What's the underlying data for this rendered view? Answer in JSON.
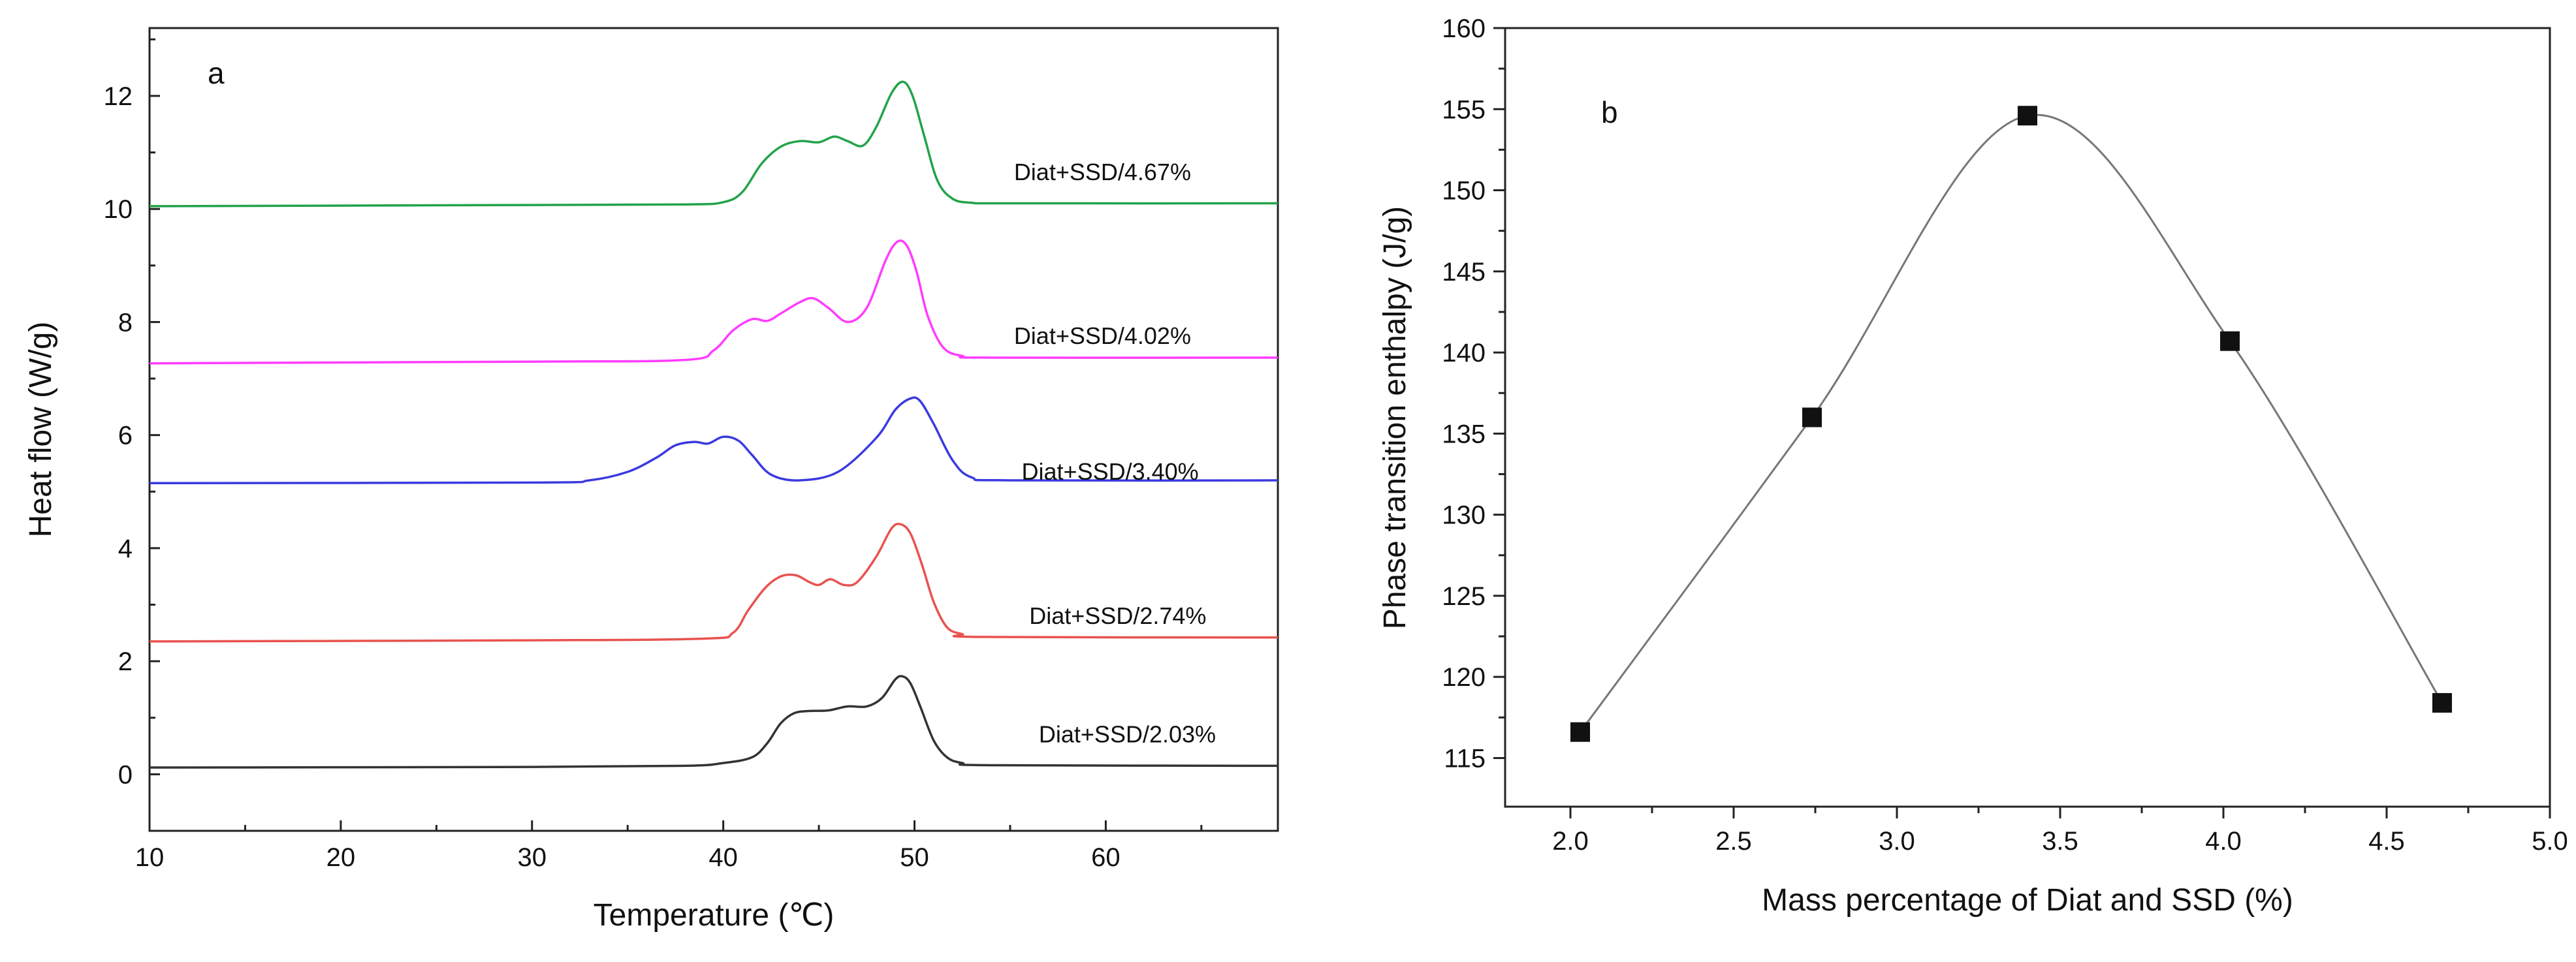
{
  "chart_data": [
    {
      "type": "line",
      "panel": "a",
      "title": "",
      "xlabel": "Temperature (℃)",
      "ylabel": "Heat flow (W/g)",
      "xlim": [
        10,
        69
      ],
      "ylim": [
        -1,
        13.2
      ],
      "xticks": [
        10,
        20,
        30,
        40,
        50,
        60
      ],
      "yticks": [
        0,
        2,
        4,
        6,
        8,
        10,
        12
      ],
      "grid": false,
      "series": [
        {
          "name": "Diat+SSD/2.03%",
          "color": "#333333",
          "baseline_start": 0.12,
          "baseline_end": 0.15,
          "label_at": [
            56.5,
            0.7
          ],
          "x": [
            10,
            30,
            38,
            40,
            41.5,
            42.3,
            43,
            43.7,
            44.5,
            45.5,
            46.5,
            47.5,
            48.3,
            49,
            49.4,
            49.8,
            50.3,
            51,
            51.7,
            52.5,
            54,
            69
          ],
          "y": [
            0.12,
            0.13,
            0.15,
            0.2,
            0.3,
            0.55,
            0.9,
            1.08,
            1.12,
            1.13,
            1.2,
            1.2,
            1.35,
            1.68,
            1.73,
            1.6,
            1.2,
            0.6,
            0.3,
            0.2,
            0.16,
            0.15
          ]
        },
        {
          "name": "Diat+SSD/2.74%",
          "color": "#e8534f",
          "baseline_start": 2.35,
          "baseline_end": 2.42,
          "label_at": [
            56,
            2.8
          ],
          "x": [
            10,
            30,
            39,
            40.5,
            41.3,
            42.2,
            43,
            43.8,
            44.5,
            45,
            45.6,
            46.3,
            47,
            48,
            48.8,
            49.3,
            49.8,
            50.4,
            51,
            51.7,
            52.5,
            53.5,
            69
          ],
          "y": [
            2.35,
            2.37,
            2.4,
            2.5,
            2.9,
            3.3,
            3.5,
            3.52,
            3.4,
            3.35,
            3.45,
            3.35,
            3.4,
            3.85,
            4.35,
            4.42,
            4.25,
            3.7,
            3.05,
            2.6,
            2.48,
            2.43,
            2.42
          ]
        },
        {
          "name": "Diat+SSD/3.40%",
          "color": "#3a3ae0",
          "baseline_start": 5.15,
          "baseline_end": 5.2,
          "label_at": [
            55.6,
            5.35
          ],
          "x": [
            10,
            30,
            33,
            35,
            36.5,
            37.5,
            38.5,
            39.2,
            40,
            40.8,
            41.5,
            42.5,
            44,
            46,
            48,
            49,
            49.8,
            50.3,
            51,
            52,
            53,
            55,
            69
          ],
          "y": [
            5.15,
            5.16,
            5.2,
            5.35,
            5.6,
            5.82,
            5.88,
            5.85,
            5.97,
            5.9,
            5.65,
            5.3,
            5.2,
            5.35,
            5.95,
            6.45,
            6.65,
            6.6,
            6.2,
            5.55,
            5.25,
            5.2,
            5.2
          ]
        },
        {
          "name": "Diat+SSD/4.02%",
          "color": "#ff3cff",
          "baseline_start": 7.27,
          "baseline_end": 7.37,
          "label_at": [
            55.2,
            7.75
          ],
          "x": [
            10,
            30,
            38,
            39.5,
            40.5,
            41.5,
            42.3,
            43,
            44,
            44.7,
            45.5,
            46.5,
            47.5,
            48.5,
            49.1,
            49.6,
            50.1,
            50.7,
            51.5,
            52.5,
            54,
            69
          ],
          "y": [
            7.27,
            7.3,
            7.33,
            7.5,
            7.85,
            8.05,
            8.02,
            8.15,
            8.35,
            8.42,
            8.25,
            8.0,
            8.25,
            9.1,
            9.42,
            9.35,
            8.9,
            8.1,
            7.55,
            7.4,
            7.37,
            7.37
          ]
        },
        {
          "name": "Diat+SSD/4.67%",
          "color": "#22a34a",
          "baseline_start": 10.05,
          "baseline_end": 10.1,
          "label_at": [
            55.2,
            10.65
          ],
          "x": [
            10,
            30,
            38,
            40,
            41,
            42,
            43,
            44,
            45,
            45.8,
            46.5,
            47.3,
            48,
            48.8,
            49.4,
            49.9,
            50.5,
            51.2,
            52,
            53,
            55,
            69
          ],
          "y": [
            10.05,
            10.07,
            10.08,
            10.12,
            10.3,
            10.8,
            11.1,
            11.2,
            11.18,
            11.28,
            11.2,
            11.12,
            11.45,
            12.05,
            12.25,
            12.0,
            11.3,
            10.5,
            10.18,
            10.11,
            10.1,
            10.1
          ]
        }
      ]
    },
    {
      "type": "scatter",
      "panel": "b",
      "title": "",
      "xlabel": "Mass percentage of Diat and SSD (%)",
      "ylabel": "Phase transition enthalpy (J/g)",
      "xlim": [
        1.8,
        5.0
      ],
      "ylim": [
        112,
        160
      ],
      "xticks": [
        2.0,
        2.5,
        3.0,
        3.5,
        4.0,
        4.5,
        5.0
      ],
      "xticklabels": [
        "2.0",
        "2.5",
        "3.0",
        "3.5",
        "4.0",
        "4.5",
        "5.0"
      ],
      "yticks": [
        115,
        120,
        125,
        130,
        135,
        140,
        145,
        150,
        155,
        160
      ],
      "grid": false,
      "marker": "square",
      "fit_line": "spline",
      "x": [
        2.03,
        2.74,
        3.4,
        4.02,
        4.67
      ],
      "y": [
        116.6,
        136.0,
        154.6,
        140.7,
        118.4
      ]
    }
  ]
}
